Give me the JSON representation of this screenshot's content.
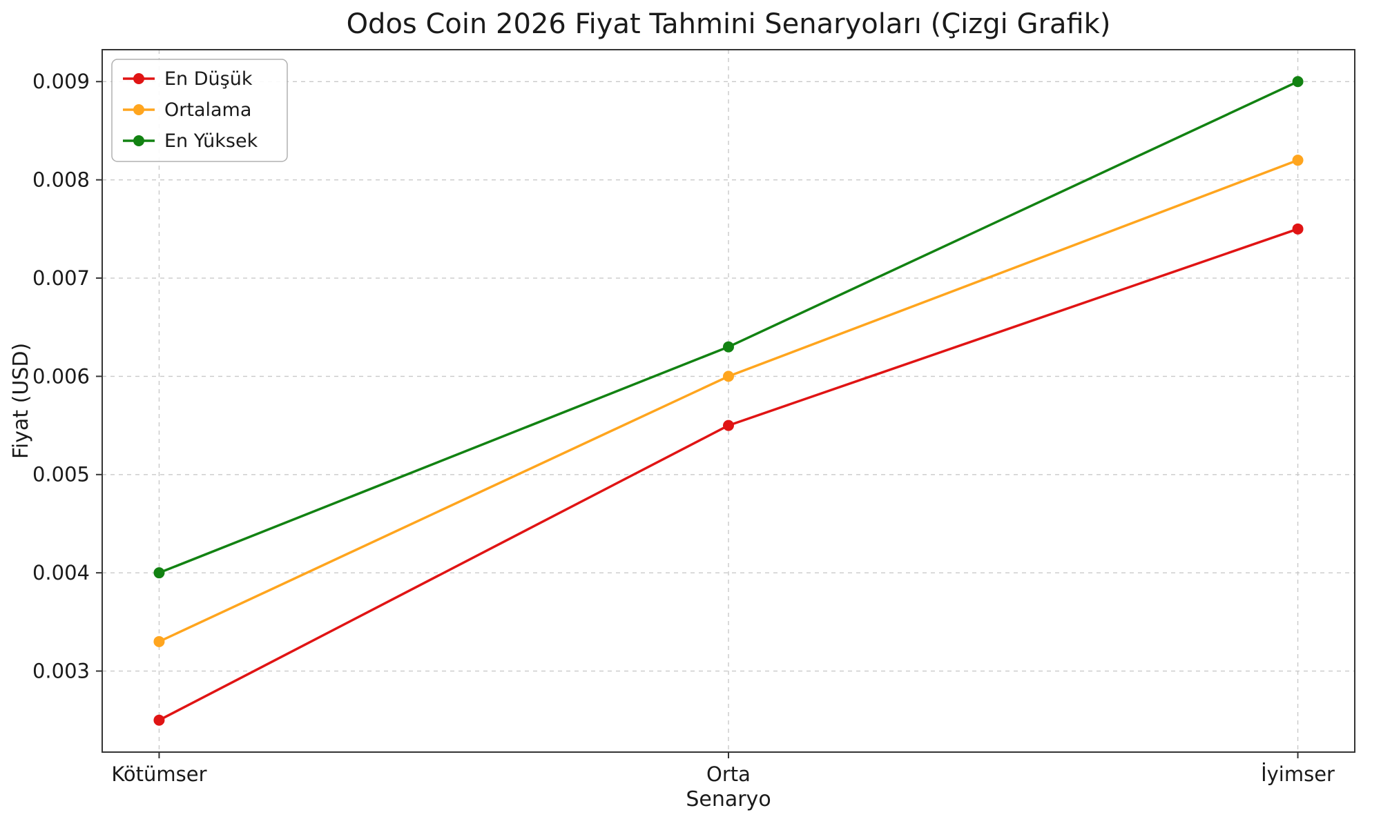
{
  "chart_data": {
    "type": "line",
    "title": "Odos Coin 2026 Fiyat Tahmini Senaryoları (Çizgi Grafik)",
    "xlabel": "Senaryo",
    "ylabel": "Fiyat (USD)",
    "categories": [
      "Kötümser",
      "Orta",
      "İyimser"
    ],
    "series": [
      {
        "name": "En Düşük",
        "color": "#e01414",
        "values": [
          0.0025,
          0.0055,
          0.0075
        ]
      },
      {
        "name": "Ortalama",
        "color": "#ffa51e",
        "values": [
          0.0033,
          0.006,
          0.0082
        ]
      },
      {
        "name": "En Yüksek",
        "color": "#128212",
        "values": [
          0.004,
          0.0063,
          0.009
        ]
      }
    ],
    "yticks": [
      0.003,
      0.004,
      0.005,
      0.006,
      0.007,
      0.008,
      0.009
    ],
    "ytick_labels": [
      "0.003",
      "0.004",
      "0.005",
      "0.006",
      "0.007",
      "0.008",
      "0.009"
    ],
    "ylim": [
      0.002175,
      0.009325
    ],
    "grid": true,
    "grid_style": "dashed",
    "legend_position": "upper left",
    "marker": "circle",
    "frame_color": "#333333",
    "grid_color": "#c9c9c9",
    "text_color": "#1a1a1a"
  }
}
